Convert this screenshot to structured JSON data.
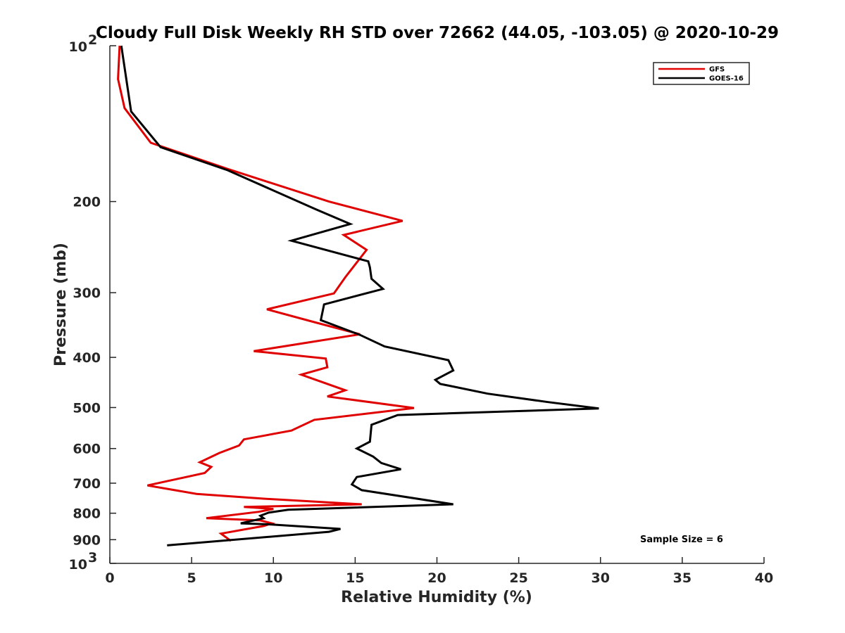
{
  "chart_data": {
    "type": "line",
    "title": "Cloudy Full Disk Weekly RH STD over 72662 (44.05, -103.05) @ 2020-10-29",
    "xlabel": "Relative Humidity (%)",
    "ylabel": "Pressure (mb)",
    "xlim": [
      0,
      40
    ],
    "ylim": [
      100,
      1000
    ],
    "y_scale": "log",
    "y_reversed": true,
    "grid": false,
    "legend_position": "top-right",
    "x_ticks": [
      0,
      5,
      10,
      15,
      20,
      25,
      30,
      35,
      40
    ],
    "y_ticks": [
      {
        "value": 100,
        "base": "10",
        "exp": "2"
      },
      {
        "value": 200,
        "label": "200"
      },
      {
        "value": 300,
        "label": "300"
      },
      {
        "value": 400,
        "label": "400"
      },
      {
        "value": 500,
        "label": "500"
      },
      {
        "value": 600,
        "label": "600"
      },
      {
        "value": 700,
        "label": "700"
      },
      {
        "value": 800,
        "label": "800"
      },
      {
        "value": 900,
        "label": "900"
      },
      {
        "value": 1000,
        "base": "10",
        "exp": "3"
      }
    ],
    "annotation": "Sample Size = 6",
    "series": [
      {
        "name": "GFS",
        "color": "#e00000",
        "points": [
          [
            0.6,
            100
          ],
          [
            0.5,
            116
          ],
          [
            0.9,
            132
          ],
          [
            2.5,
            154
          ],
          [
            7.2,
            173
          ],
          [
            13.4,
            200
          ],
          [
            17.9,
            218
          ],
          [
            14.3,
            232
          ],
          [
            15.7,
            248
          ],
          [
            14.4,
            280
          ],
          [
            13.7,
            301
          ],
          [
            9.6,
            323
          ],
          [
            12.5,
            342
          ],
          [
            15.3,
            361
          ],
          [
            8.8,
            389
          ],
          [
            13.2,
            402
          ],
          [
            13.3,
            418
          ],
          [
            11.7,
            432
          ],
          [
            14.4,
            463
          ],
          [
            13.3,
            476
          ],
          [
            18.6,
            501
          ],
          [
            12.5,
            528
          ],
          [
            11.1,
            554
          ],
          [
            8.2,
            576
          ],
          [
            7.9,
            592
          ],
          [
            6.7,
            612
          ],
          [
            5.5,
            638
          ],
          [
            6.2,
            651
          ],
          [
            5.8,
            669
          ],
          [
            2.3,
            707
          ],
          [
            5.3,
            734
          ],
          [
            9.4,
            750
          ],
          [
            15.4,
            769
          ],
          [
            8.2,
            778
          ],
          [
            10.0,
            785
          ],
          [
            9.1,
            795
          ],
          [
            5.9,
            818
          ],
          [
            9.2,
            826
          ],
          [
            9.9,
            837
          ],
          [
            9.4,
            847
          ],
          [
            6.8,
            876
          ],
          [
            7.4,
            905
          ]
        ]
      },
      {
        "name": "GOES-16",
        "color": "#000000",
        "points": [
          [
            0.7,
            100
          ],
          [
            1.3,
            134
          ],
          [
            3.1,
            157
          ],
          [
            7.2,
            174
          ],
          [
            12.6,
            207
          ],
          [
            14.7,
            221
          ],
          [
            11.1,
            238
          ],
          [
            15.8,
            261
          ],
          [
            15.9,
            268
          ],
          [
            16.0,
            282
          ],
          [
            16.7,
            295
          ],
          [
            13.1,
            316
          ],
          [
            12.9,
            339
          ],
          [
            15.3,
            362
          ],
          [
            16.8,
            381
          ],
          [
            20.7,
            405
          ],
          [
            21.0,
            424
          ],
          [
            19.9,
            442
          ],
          [
            20.2,
            450
          ],
          [
            23.1,
            470
          ],
          [
            26.8,
            488
          ],
          [
            29.9,
            502
          ],
          [
            17.6,
            517
          ],
          [
            16.0,
            540
          ],
          [
            15.9,
            582
          ],
          [
            15.1,
            600
          ],
          [
            16.1,
            622
          ],
          [
            16.6,
            640
          ],
          [
            17.8,
            658
          ],
          [
            15.1,
            681
          ],
          [
            14.8,
            704
          ],
          [
            15.4,
            722
          ],
          [
            21.0,
            769
          ],
          [
            10.9,
            788
          ],
          [
            9.7,
            798
          ],
          [
            9.2,
            809
          ],
          [
            9.4,
            818
          ],
          [
            8.0,
            837
          ],
          [
            9.8,
            841
          ],
          [
            14.1,
            858
          ],
          [
            13.4,
            869
          ],
          [
            3.5,
            923
          ]
        ]
      }
    ]
  }
}
